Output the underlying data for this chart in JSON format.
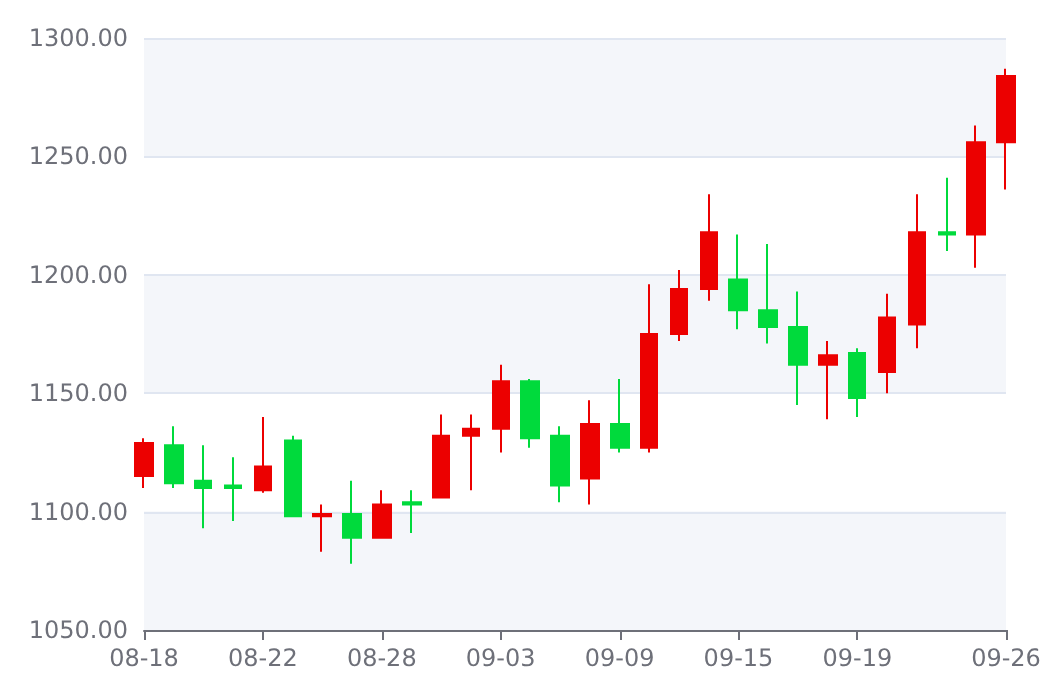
{
  "chart_data": {
    "type": "candlestick",
    "categories": [
      "08-18",
      null,
      null,
      null,
      "08-22",
      null,
      null,
      null,
      "08-28",
      null,
      null,
      null,
      "09-03",
      null,
      null,
      null,
      "09-09",
      null,
      null,
      null,
      "09-15",
      null,
      null,
      null,
      "09-19",
      null,
      null,
      null,
      null,
      "09-26"
    ],
    "ohlc": [
      [
        1115,
        1131,
        1110,
        1129
      ],
      [
        1128,
        1136,
        1110,
        1112
      ],
      [
        1113,
        1128,
        1093,
        1110
      ],
      [
        1111,
        1123,
        1096,
        1110
      ],
      [
        1109,
        1140,
        1108,
        1119
      ],
      [
        1130,
        1132,
        1098,
        1098
      ],
      [
        1098,
        1103,
        1083,
        1099
      ],
      [
        1099,
        1113,
        1078,
        1089
      ],
      [
        1089,
        1109,
        1089,
        1103
      ],
      [
        1104,
        1109,
        1091,
        1103
      ],
      [
        1106,
        1141,
        1106,
        1132
      ],
      [
        1132,
        1141,
        1109,
        1135
      ],
      [
        1135,
        1162,
        1125,
        1155
      ],
      [
        1155,
        1156,
        1127,
        1131
      ],
      [
        1132,
        1136,
        1104,
        1111
      ],
      [
        1114,
        1147,
        1103,
        1137
      ],
      [
        1137,
        1156,
        1125,
        1127
      ],
      [
        1127,
        1196,
        1125,
        1175
      ],
      [
        1175,
        1202,
        1172,
        1194
      ],
      [
        1194,
        1234,
        1189,
        1218
      ],
      [
        1198,
        1217,
        1177,
        1185
      ],
      [
        1185,
        1213,
        1171,
        1178
      ],
      [
        1178,
        1193,
        1145,
        1162
      ],
      [
        1162,
        1172,
        1139,
        1166
      ],
      [
        1167,
        1169,
        1140,
        1148
      ],
      [
        1159,
        1192,
        1150,
        1182
      ],
      [
        1179,
        1234,
        1169,
        1218
      ],
      [
        1218,
        1241,
        1210,
        1217
      ],
      [
        1217,
        1263,
        1203,
        1256
      ],
      [
        1256,
        1287,
        1236,
        1284
      ]
    ],
    "colors": [
      "#ec0000",
      "#00da3c",
      "#00da3c",
      "#00da3c",
      "#ec0000",
      "#00da3c",
      "#ec0000",
      "#00da3c",
      "#ec0000",
      "#00da3c",
      "#ec0000",
      "#ec0000",
      "#ec0000",
      "#00da3c",
      "#00da3c",
      "#ec0000",
      "#00da3c",
      "#ec0000",
      "#ec0000",
      "#ec0000",
      "#00da3c",
      "#00da3c",
      "#00da3c",
      "#ec0000",
      "#00da3c",
      "#ec0000",
      "#ec0000",
      "#00da3c",
      "#ec0000",
      "#ec0000"
    ],
    "ylim": [
      1050,
      1300
    ],
    "yticks": [
      {
        "value": 1050,
        "label": "1050.00"
      },
      {
        "value": 1100,
        "label": "1100.00"
      },
      {
        "value": 1150,
        "label": "1150.00"
      },
      {
        "value": 1200,
        "label": "1200.00"
      },
      {
        "value": 1250,
        "label": "1250.00"
      },
      {
        "value": 1300,
        "label": "1300.00"
      }
    ],
    "grid": "y"
  }
}
